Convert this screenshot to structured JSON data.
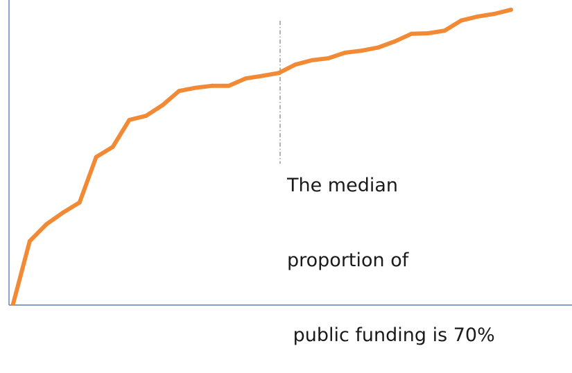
{
  "chart_data": {
    "type": "line",
    "title": "",
    "xlabel": "",
    "ylabel": "",
    "grid": false,
    "legend": "none",
    "xlim": [
      0,
      30
    ],
    "ylim": [
      0,
      100
    ],
    "series": [
      {
        "values": [
          0,
          21.6,
          27.4,
          31.4,
          34.9,
          50.6,
          54.1,
          63.4,
          64.8,
          68.5,
          73.4,
          74.5,
          75.2,
          75.2,
          77.7,
          78.6,
          79.6,
          82.5,
          84.0,
          84.7,
          86.6,
          87.3,
          88.4,
          90.5,
          93.1,
          93.3,
          94.2,
          97.7,
          99.1,
          100.0,
          101.4
        ]
      }
    ],
    "reference_line": {
      "x": 16,
      "style": "dash-dot",
      "label_lines": [
        "The median",
        "proportion of",
        " public funding is 70%"
      ]
    },
    "colors": {
      "series": "#f28a35",
      "axis": "#5b7db1",
      "reference_line": "#666666",
      "text": "#1a1a1a"
    }
  }
}
